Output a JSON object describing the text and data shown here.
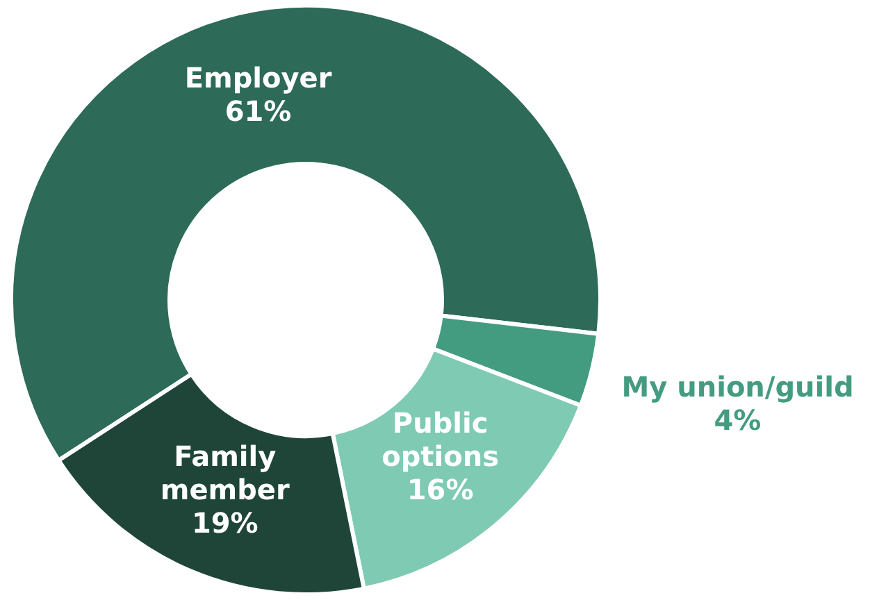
{
  "chart_data": {
    "type": "donut",
    "categories": [
      "Employer",
      "My union/guild",
      "Public options",
      "Family member"
    ],
    "values": [
      61,
      4,
      16,
      19
    ],
    "colors": [
      "#2d6a58",
      "#449c80",
      "#7fcab3",
      "#1e4538"
    ],
    "value_labels": [
      "61%",
      "4%",
      "16%",
      "19%"
    ]
  }
}
